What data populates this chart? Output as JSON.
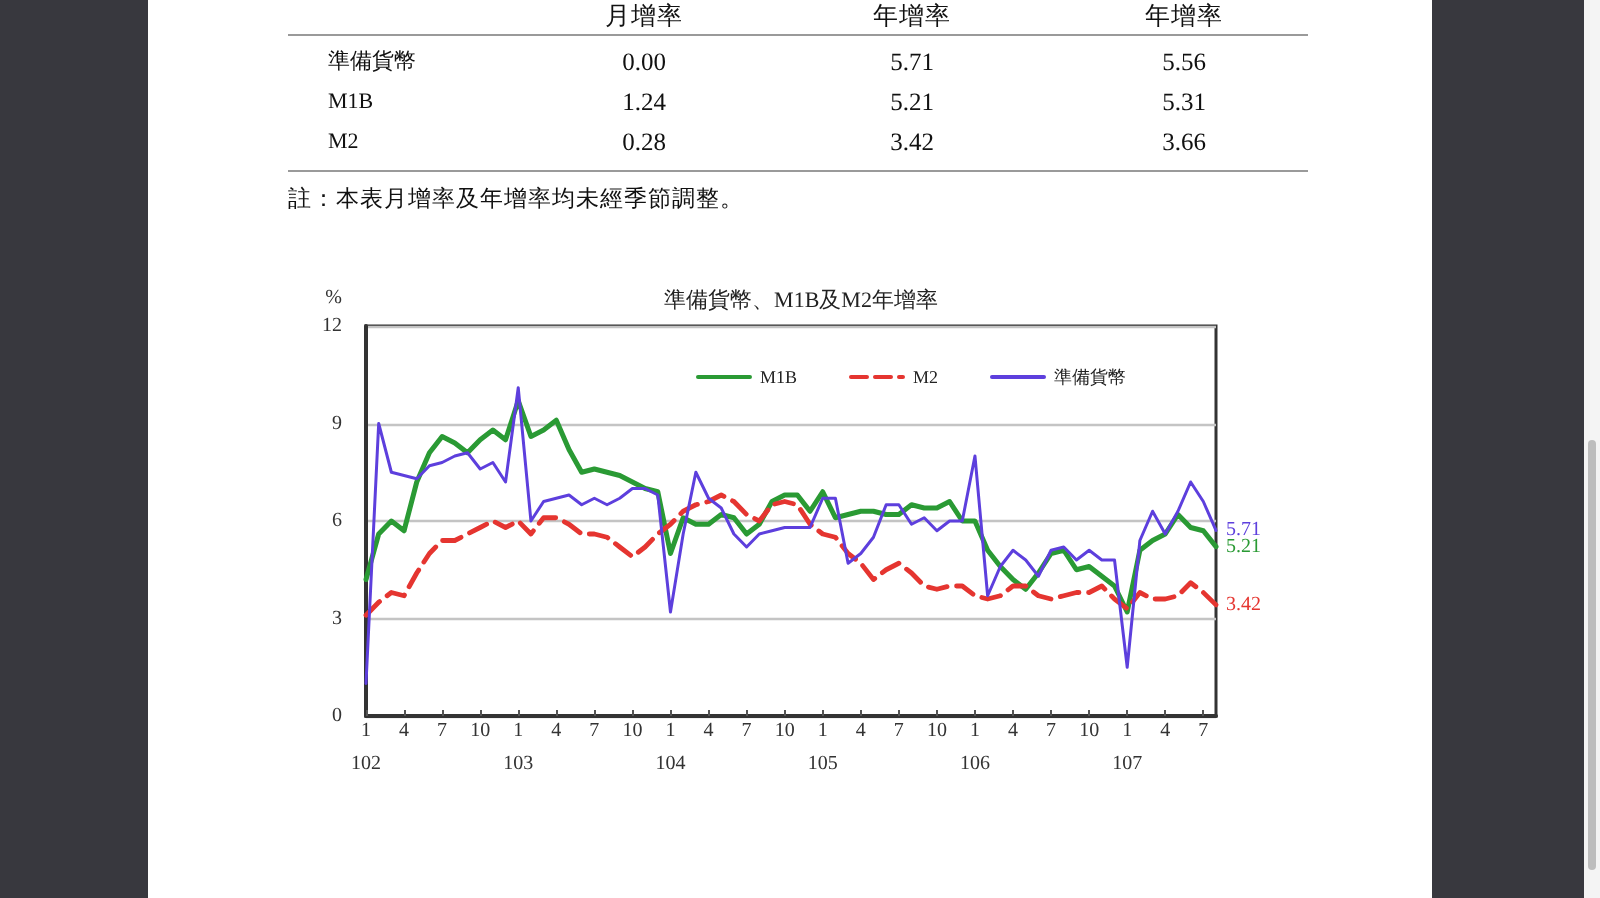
{
  "chart_data": [
    {
      "type": "other",
      "categories": [
        "準備貨幣",
        "M1B",
        "M2"
      ],
      "series": [
        {
          "name": "月增率",
          "values": [
            0.0,
            1.24,
            0.28
          ],
          "value_labels": [
            "0.00",
            "1.24",
            "0.28"
          ]
        },
        {
          "name": "年增率",
          "values": [
            5.71,
            5.21,
            3.42
          ]
        },
        {
          "name": "年增率",
          "values": [
            5.56,
            5.31,
            3.66
          ]
        }
      ],
      "data_labels": true,
      "annotations": [
        "註：本表月增率及年增率均未經季節調整。"
      ]
    },
    {
      "type": "line",
      "title": "準備貨幣、M1B及M2年增率",
      "ylabel": "%",
      "categories": [
        "1\n102",
        null,
        null,
        "4",
        null,
        null,
        "7",
        null,
        null,
        "10",
        null,
        null,
        "1\n103",
        null,
        null,
        "4",
        null,
        null,
        "7",
        null,
        null,
        "10",
        null,
        null,
        "1\n104",
        null,
        null,
        "4",
        null,
        null,
        "7",
        null,
        null,
        "10",
        null,
        null,
        "1\n105",
        null,
        null,
        "4",
        null,
        null,
        "7",
        null,
        null,
        "10",
        null,
        null,
        "1\n106",
        null,
        null,
        "4",
        null,
        null,
        "7",
        null,
        null,
        "10",
        null,
        null,
        "1\n107",
        null,
        null,
        "4",
        null,
        null,
        "7",
        null
      ],
      "series": [
        {
          "name": "M1B",
          "color": "#2a9a34",
          "values": [
            4.2,
            5.6,
            6.0,
            5.7,
            7.2,
            8.1,
            8.6,
            8.4,
            8.1,
            8.5,
            8.8,
            8.5,
            9.7,
            8.6,
            8.8,
            9.1,
            8.2,
            7.5,
            7.6,
            7.5,
            7.4,
            7.2,
            7.0,
            6.9,
            5.0,
            6.1,
            5.9,
            5.9,
            6.2,
            6.1,
            5.6,
            5.9,
            6.6,
            6.8,
            6.8,
            6.3,
            6.9,
            6.1,
            6.2,
            6.3,
            6.3,
            6.2,
            6.2,
            6.5,
            6.4,
            6.4,
            6.6,
            6.0,
            6.0,
            5.1,
            4.6,
            4.2,
            3.9,
            4.4,
            5.0,
            5.1,
            4.5,
            4.6,
            4.3,
            4.0,
            3.2,
            5.1,
            5.4,
            5.6,
            6.2,
            5.8,
            5.7,
            5.21
          ],
          "value_labels": [
            null,
            null,
            null,
            null,
            null,
            null,
            null,
            null,
            null,
            null,
            null,
            null,
            null,
            null,
            null,
            null,
            null,
            null,
            null,
            null,
            null,
            null,
            null,
            null,
            null,
            null,
            null,
            null,
            null,
            null,
            null,
            null,
            null,
            null,
            null,
            null,
            null,
            null,
            null,
            null,
            null,
            null,
            null,
            null,
            null,
            null,
            null,
            null,
            null,
            null,
            null,
            null,
            null,
            null,
            null,
            null,
            null,
            null,
            null,
            null,
            null,
            null,
            null,
            null,
            null,
            null,
            null,
            "5.21"
          ]
        },
        {
          "name": "M2",
          "color": "#e53530",
          "line_style": "dashed",
          "values": [
            3.1,
            3.5,
            3.8,
            3.7,
            4.4,
            5.0,
            5.4,
            5.4,
            5.6,
            5.8,
            6.0,
            5.8,
            6.0,
            5.6,
            6.1,
            6.1,
            5.9,
            5.6,
            5.6,
            5.5,
            5.2,
            4.9,
            5.2,
            5.6,
            5.9,
            6.3,
            6.5,
            6.6,
            6.8,
            6.6,
            6.2,
            6.0,
            6.5,
            6.6,
            6.5,
            5.9,
            5.6,
            5.5,
            5.0,
            4.7,
            4.2,
            4.5,
            4.7,
            4.4,
            4.0,
            3.9,
            4.0,
            4.0,
            3.7,
            3.6,
            3.7,
            4.0,
            4.0,
            3.7,
            3.6,
            3.7,
            3.8,
            3.8,
            4.0,
            3.6,
            3.3,
            3.8,
            3.6,
            3.6,
            3.7,
            4.1,
            3.8,
            3.42
          ],
          "value_labels": [
            null,
            null,
            null,
            null,
            null,
            null,
            null,
            null,
            null,
            null,
            null,
            null,
            null,
            null,
            null,
            null,
            null,
            null,
            null,
            null,
            null,
            null,
            null,
            null,
            null,
            null,
            null,
            null,
            null,
            null,
            null,
            null,
            null,
            null,
            null,
            null,
            null,
            null,
            null,
            null,
            null,
            null,
            null,
            null,
            null,
            null,
            null,
            null,
            null,
            null,
            null,
            null,
            null,
            null,
            null,
            null,
            null,
            null,
            null,
            null,
            null,
            null,
            null,
            null,
            null,
            null,
            null,
            "3.42"
          ]
        },
        {
          "name": "準備貨幣",
          "color": "#5d3fdd",
          "values": [
            1.0,
            9.0,
            7.5,
            7.4,
            7.3,
            7.7,
            7.8,
            8.0,
            8.1,
            7.6,
            7.8,
            7.2,
            10.1,
            6.0,
            6.6,
            6.7,
            6.8,
            6.5,
            6.7,
            6.5,
            6.7,
            7.0,
            7.0,
            6.8,
            3.2,
            5.6,
            7.5,
            6.7,
            6.4,
            5.6,
            5.2,
            5.6,
            5.7,
            5.8,
            5.8,
            5.8,
            6.7,
            6.7,
            4.7,
            5.0,
            5.5,
            6.5,
            6.5,
            5.9,
            6.1,
            5.7,
            6.0,
            6.0,
            8.0,
            3.7,
            4.6,
            5.1,
            4.8,
            4.3,
            5.1,
            5.2,
            4.8,
            5.1,
            4.8,
            4.8,
            1.5,
            5.4,
            6.3,
            5.6,
            6.3,
            7.2,
            6.6,
            5.71
          ],
          "value_labels": [
            null,
            null,
            null,
            null,
            null,
            null,
            null,
            null,
            null,
            null,
            null,
            null,
            null,
            null,
            null,
            null,
            null,
            null,
            null,
            null,
            null,
            null,
            null,
            null,
            null,
            null,
            null,
            null,
            null,
            null,
            null,
            null,
            null,
            null,
            null,
            null,
            null,
            null,
            null,
            null,
            null,
            null,
            null,
            null,
            null,
            null,
            null,
            null,
            null,
            null,
            null,
            null,
            null,
            null,
            null,
            null,
            null,
            null,
            null,
            null,
            null,
            null,
            null,
            null,
            null,
            null,
            null,
            "5.71"
          ]
        }
      ],
      "ylim": [
        0,
        12
      ],
      "yticks": [
        0,
        3,
        6,
        9,
        12
      ],
      "grid": "y",
      "legend": "top right",
      "marker": "none",
      "line_style": "solid"
    }
  ]
}
